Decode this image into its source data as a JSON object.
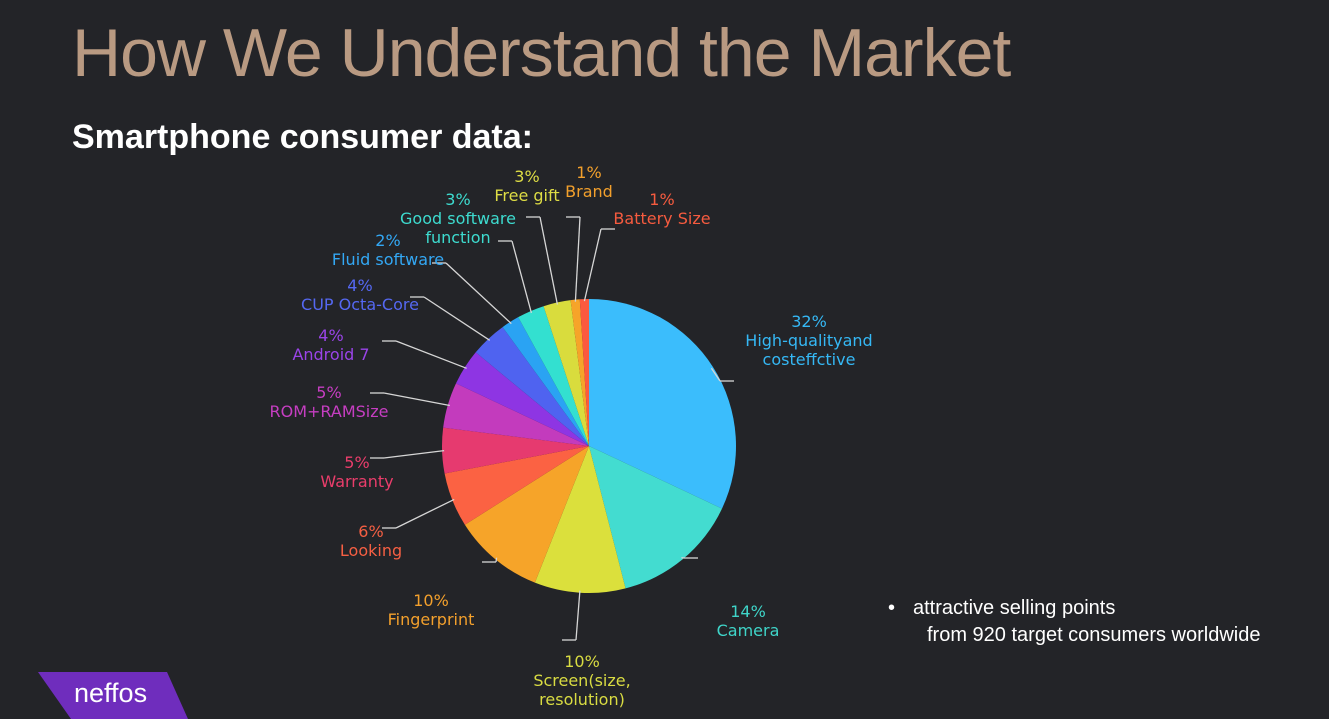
{
  "slide": {
    "title": "How We Understand the Market",
    "subtitle": "Smartphone consumer data:",
    "bullet_line1": "attractive selling points",
    "bullet_line2": "from 920 target consumers worldwide",
    "bullet_symbol": "•",
    "logo_text": "neffos"
  },
  "colors": {
    "background": "#232428",
    "title": "#b99a82",
    "logo": "#6f2dbd"
  },
  "chart_data": {
    "type": "pie",
    "title": "",
    "slices": [
      {
        "pct": "32%",
        "value": 32,
        "label": [
          "High-qualityand",
          "costeffctive"
        ],
        "color": "#3bbdfc",
        "text_color": "#35b8f5"
      },
      {
        "pct": "14%",
        "value": 14,
        "label": [
          "Camera"
        ],
        "color": "#43dcd0",
        "text_color": "#3fd5c9"
      },
      {
        "pct": "10%",
        "value": 10,
        "label": [
          "Screen(size,",
          "resolution)"
        ],
        "color": "#dbe03c",
        "text_color": "#d9dc42"
      },
      {
        "pct": "10%",
        "value": 10,
        "label": [
          "Fingerprint"
        ],
        "color": "#f6a429",
        "text_color": "#f3a02c"
      },
      {
        "pct": "6%",
        "value": 6,
        "label": [
          "Looking"
        ],
        "color": "#fb6243",
        "text_color": "#f65f43"
      },
      {
        "pct": "5%",
        "value": 5,
        "label": [
          "Warranty"
        ],
        "color": "#e63a6f",
        "text_color": "#ea3d6b"
      },
      {
        "pct": "5%",
        "value": 5,
        "label": [
          "ROM+RAMSize"
        ],
        "color": "#c33bbd",
        "text_color": "#c63ec2"
      },
      {
        "pct": "4%",
        "value": 4,
        "label": [
          "Android 7"
        ],
        "color": "#8e35e3",
        "text_color": "#9a44e8"
      },
      {
        "pct": "4%",
        "value": 4,
        "label": [
          "CUP Octa-Core"
        ],
        "color": "#4f63f0",
        "text_color": "#5568f2"
      },
      {
        "pct": "2%",
        "value": 2,
        "label": [
          "Fluid software"
        ],
        "color": "#2aa3f3",
        "text_color": "#33a8f5"
      },
      {
        "pct": "3%",
        "value": 3,
        "label": [
          "Good software",
          "function"
        ],
        "color": "#33e0d0",
        "text_color": "#3ddbcf"
      },
      {
        "pct": "3%",
        "value": 3,
        "label": [
          "Free gift"
        ],
        "color": "#d9dc3d",
        "text_color": "#dedd45"
      },
      {
        "pct": "1%",
        "value": 1,
        "label": [
          "Brand"
        ],
        "color": "#f6a429",
        "text_color": "#f3a02c"
      },
      {
        "pct": "1%",
        "value": 1,
        "label": [
          "Battery Size"
        ],
        "color": "#fb5a3f",
        "text_color": "#f65b3f"
      }
    ]
  }
}
